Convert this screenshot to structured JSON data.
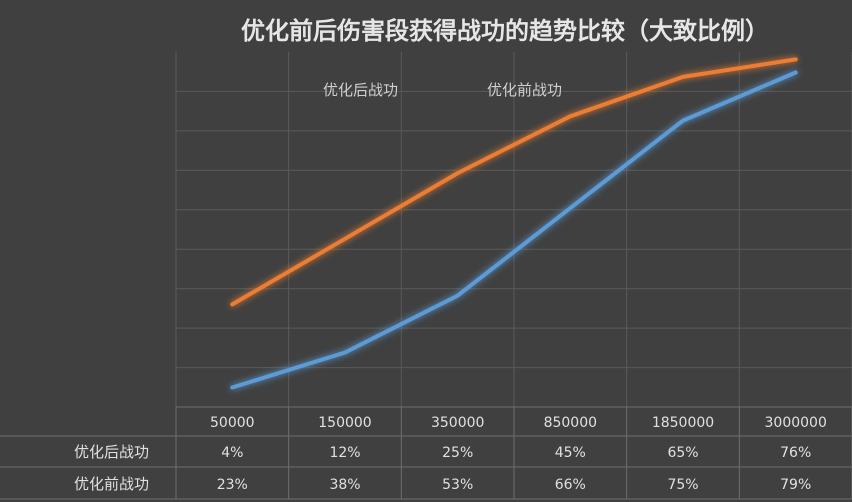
{
  "chart_data": {
    "type": "line",
    "title": "优化前后伤害段获得战功的趋势比较（大致比例）",
    "categories": [
      "50000",
      "150000",
      "350000",
      "850000",
      "1850000",
      "3000000"
    ],
    "series": [
      {
        "name": "优化后战功",
        "values": [
          4,
          12,
          25,
          45,
          65,
          76
        ],
        "labels": [
          "4%",
          "12%",
          "25%",
          "45%",
          "65%",
          "76%"
        ],
        "color": "#5b9bd5"
      },
      {
        "name": "优化前战功",
        "values": [
          23,
          38,
          53,
          66,
          75,
          79
        ],
        "labels": [
          "23%",
          "38%",
          "53%",
          "66%",
          "75%",
          "79%"
        ],
        "color": "#ed7d31"
      }
    ],
    "ylim": [
      0,
      80
    ],
    "grid": true,
    "legend": "top",
    "y_tick_labels_shown": false,
    "data_table": true
  }
}
